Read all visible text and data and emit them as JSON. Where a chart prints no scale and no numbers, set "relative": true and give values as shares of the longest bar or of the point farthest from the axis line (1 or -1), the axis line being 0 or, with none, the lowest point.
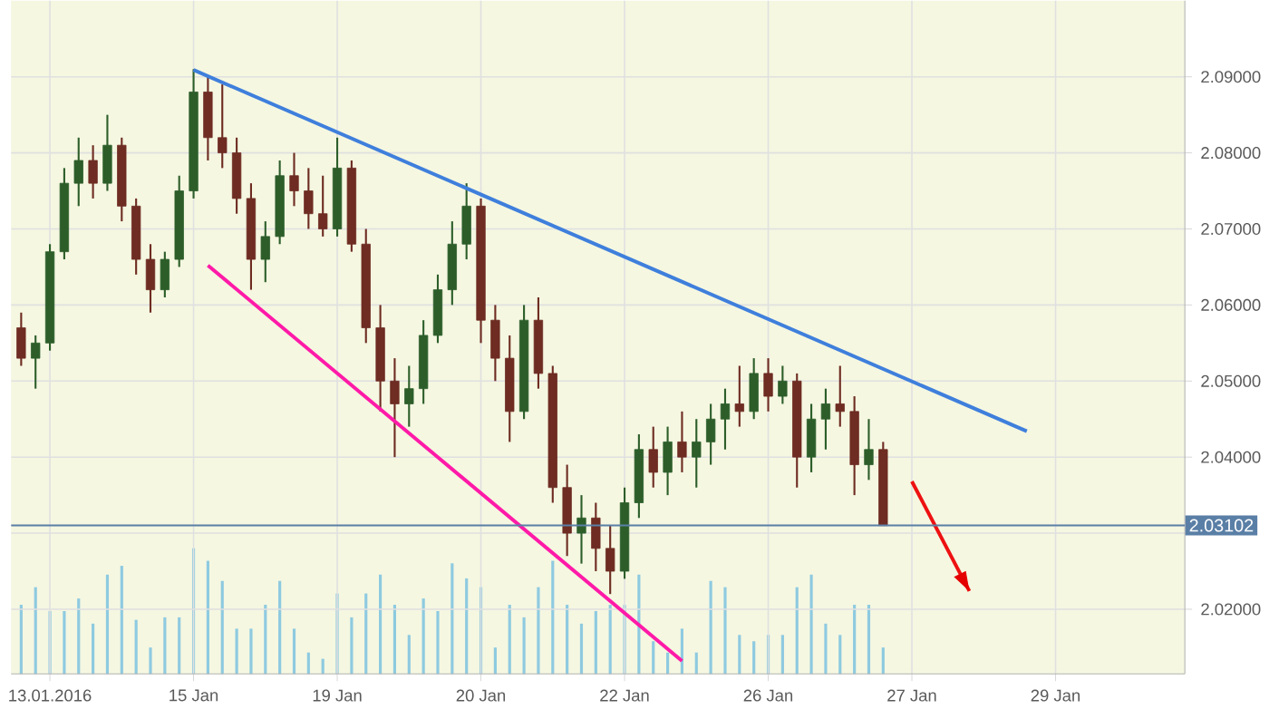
{
  "chart_data": [
    {
      "type": "candlestick",
      "categories": [
        null,
        null,
        "13.01.2016",
        null,
        null,
        null,
        null,
        null,
        null,
        null,
        null,
        null,
        "15 Jan",
        null,
        null,
        null,
        null,
        null,
        null,
        null,
        null,
        null,
        "19 Jan",
        null,
        null,
        null,
        null,
        null,
        null,
        null,
        null,
        null,
        "20 Jan",
        null,
        null,
        null,
        null,
        null,
        null,
        null,
        null,
        null,
        "22 Jan",
        null,
        null,
        null,
        null,
        null,
        null,
        null,
        null,
        null,
        "26 Jan",
        null,
        null,
        null,
        null,
        null,
        null,
        null,
        null,
        null,
        "27 Jan",
        null,
        null,
        null,
        null,
        null,
        null,
        null,
        null,
        null,
        "29 Jan",
        null,
        null,
        null,
        null,
        null,
        null,
        null,
        null,
        null
      ],
      "ohlc": [
        [
          2.057,
          2.059,
          2.052,
          2.053
        ],
        [
          2.053,
          2.056,
          2.049,
          2.055
        ],
        [
          2.055,
          2.068,
          2.054,
          2.067
        ],
        [
          2.067,
          2.078,
          2.066,
          2.076
        ],
        [
          2.076,
          2.082,
          2.073,
          2.079
        ],
        [
          2.079,
          2.081,
          2.074,
          2.076
        ],
        [
          2.076,
          2.085,
          2.075,
          2.081
        ],
        [
          2.081,
          2.082,
          2.071,
          2.073
        ],
        [
          2.073,
          2.074,
          2.064,
          2.066
        ],
        [
          2.066,
          2.068,
          2.059,
          2.062
        ],
        [
          2.062,
          2.067,
          2.061,
          2.066
        ],
        [
          2.066,
          2.077,
          2.065,
          2.075
        ],
        [
          2.075,
          2.091,
          2.074,
          2.088
        ],
        [
          2.088,
          2.09,
          2.079,
          2.082
        ],
        [
          2.082,
          2.089,
          2.078,
          2.08
        ],
        [
          2.08,
          2.082,
          2.072,
          2.074
        ],
        [
          2.074,
          2.076,
          2.062,
          2.066
        ],
        [
          2.066,
          2.071,
          2.063,
          2.069
        ],
        [
          2.069,
          2.079,
          2.068,
          2.077
        ],
        [
          2.077,
          2.08,
          2.073,
          2.075
        ],
        [
          2.075,
          2.078,
          2.07,
          2.072
        ],
        [
          2.072,
          2.077,
          2.069,
          2.07
        ],
        [
          2.07,
          2.082,
          2.069,
          2.078
        ],
        [
          2.078,
          2.079,
          2.067,
          2.068
        ],
        [
          2.068,
          2.07,
          2.055,
          2.057
        ],
        [
          2.057,
          2.06,
          2.046,
          2.05
        ],
        [
          2.05,
          2.053,
          2.04,
          2.047
        ],
        [
          2.047,
          2.052,
          2.044,
          2.049
        ],
        [
          2.049,
          2.058,
          2.047,
          2.056
        ],
        [
          2.056,
          2.064,
          2.055,
          2.062
        ],
        [
          2.062,
          2.071,
          2.06,
          2.068
        ],
        [
          2.068,
          2.076,
          2.066,
          2.073
        ],
        [
          2.073,
          2.074,
          2.055,
          2.058
        ],
        [
          2.058,
          2.06,
          2.05,
          2.053
        ],
        [
          2.053,
          2.056,
          2.042,
          2.046
        ],
        [
          2.046,
          2.06,
          2.045,
          2.058
        ],
        [
          2.058,
          2.061,
          2.049,
          2.051
        ],
        [
          2.051,
          2.052,
          2.034,
          2.036
        ],
        [
          2.036,
          2.039,
          2.027,
          2.03
        ],
        [
          2.03,
          2.035,
          2.026,
          2.032
        ],
        [
          2.032,
          2.034,
          2.025,
          2.028
        ],
        [
          2.028,
          2.031,
          2.022,
          2.025
        ],
        [
          2.025,
          2.036,
          2.024,
          2.034
        ],
        [
          2.034,
          2.043,
          2.032,
          2.041
        ],
        [
          2.041,
          2.044,
          2.036,
          2.038
        ],
        [
          2.038,
          2.044,
          2.035,
          2.042
        ],
        [
          2.042,
          2.046,
          2.038,
          2.04
        ],
        [
          2.04,
          2.045,
          2.036,
          2.042
        ],
        [
          2.042,
          2.047,
          2.039,
          2.045
        ],
        [
          2.045,
          2.049,
          2.041,
          2.047
        ],
        [
          2.047,
          2.052,
          2.044,
          2.046
        ],
        [
          2.046,
          2.053,
          2.045,
          2.051
        ],
        [
          2.051,
          2.053,
          2.046,
          2.048
        ],
        [
          2.048,
          2.052,
          2.047,
          2.05
        ],
        [
          2.05,
          2.051,
          2.036,
          2.04
        ],
        [
          2.04,
          2.047,
          2.038,
          2.045
        ],
        [
          2.045,
          2.049,
          2.041,
          2.047
        ],
        [
          2.047,
          2.052,
          2.044,
          2.046
        ],
        [
          2.046,
          2.048,
          2.035,
          2.039
        ],
        [
          2.039,
          2.045,
          2.037,
          2.041
        ],
        [
          2.041,
          2.042,
          2.031,
          2.031
        ],
        null,
        null,
        null,
        null,
        null,
        null,
        null,
        null,
        null,
        null,
        null,
        null,
        null,
        null,
        null,
        null,
        null,
        null,
        null,
        null,
        null
      ],
      "colors": [
        "#6e2c22",
        "#2d5e2a",
        "#2d5e2a",
        "#2d5e2a",
        "#2d5e2a",
        "#6e2c22",
        "#2d5e2a",
        "#6e2c22",
        "#6e2c22",
        "#6e2c22",
        "#2d5e2a",
        "#2d5e2a",
        "#2d5e2a",
        "#6e2c22",
        "#6e2c22",
        "#6e2c22",
        "#6e2c22",
        "#2d5e2a",
        "#2d5e2a",
        "#6e2c22",
        "#6e2c22",
        "#6e2c22",
        "#2d5e2a",
        "#6e2c22",
        "#6e2c22",
        "#6e2c22",
        "#6e2c22",
        "#2d5e2a",
        "#2d5e2a",
        "#2d5e2a",
        "#2d5e2a",
        "#2d5e2a",
        "#6e2c22",
        "#6e2c22",
        "#6e2c22",
        "#2d5e2a",
        "#6e2c22",
        "#6e2c22",
        "#6e2c22",
        "#2d5e2a",
        "#6e2c22",
        "#6e2c22",
        "#2d5e2a",
        "#2d5e2a",
        "#6e2c22",
        "#2d5e2a",
        "#6e2c22",
        "#2d5e2a",
        "#2d5e2a",
        "#2d5e2a",
        "#6e2c22",
        "#2d5e2a",
        "#6e2c22",
        "#2d5e2a",
        "#6e2c22",
        "#2d5e2a",
        "#2d5e2a",
        "#6e2c22",
        "#6e2c22",
        "#2d5e2a",
        "#6e2c22",
        null,
        null,
        null,
        null,
        null,
        null,
        null,
        null,
        null,
        null,
        null,
        null,
        null,
        null,
        null,
        null,
        null,
        null,
        null,
        null,
        null
      ],
      "series": [
        {
          "type": "line",
          "color": "#3f7fdc",
          "values": [
            null,
            null,
            null,
            null,
            null,
            null,
            null,
            null,
            null,
            null,
            null,
            null,
            2.0909,
            null,
            null,
            null,
            null,
            null,
            null,
            null,
            null,
            null,
            null,
            null,
            null,
            null,
            null,
            null,
            null,
            null,
            null,
            null,
            null,
            null,
            null,
            null,
            null,
            null,
            null,
            null,
            null,
            null,
            null,
            null,
            null,
            null,
            null,
            null,
            null,
            null,
            null,
            null,
            null,
            null,
            null,
            null,
            null,
            null,
            null,
            null,
            null,
            null,
            null,
            null,
            null,
            null,
            null,
            null,
            null,
            null,
            2.0434,
            null,
            null,
            null,
            null,
            null,
            null,
            null,
            null,
            null,
            null,
            null
          ]
        },
        {
          "type": "line",
          "color": "#ff1aa8",
          "values": [
            null,
            null,
            null,
            null,
            null,
            null,
            null,
            null,
            null,
            null,
            null,
            null,
            null,
            2.0652,
            null,
            null,
            null,
            null,
            null,
            null,
            null,
            null,
            null,
            null,
            null,
            null,
            null,
            null,
            null,
            null,
            null,
            null,
            null,
            null,
            null,
            null,
            null,
            null,
            null,
            null,
            null,
            null,
            null,
            null,
            null,
            null,
            2.0132,
            null,
            null,
            null,
            null,
            null,
            null,
            null,
            null,
            null,
            null,
            null,
            null,
            null,
            null,
            null,
            null,
            null,
            null,
            null,
            null,
            null,
            null,
            null,
            null,
            null,
            null,
            null,
            null,
            null,
            null,
            null,
            null,
            null,
            null,
            null
          ]
        },
        {
          "type": "line",
          "color": "#ee1111",
          "values": [
            null,
            null,
            null,
            null,
            null,
            null,
            null,
            null,
            null,
            null,
            null,
            null,
            null,
            null,
            null,
            null,
            null,
            null,
            null,
            null,
            null,
            null,
            null,
            null,
            null,
            null,
            null,
            null,
            null,
            null,
            null,
            null,
            null,
            null,
            null,
            null,
            null,
            null,
            null,
            null,
            null,
            null,
            null,
            null,
            null,
            null,
            null,
            null,
            null,
            null,
            null,
            null,
            null,
            null,
            null,
            null,
            null,
            null,
            null,
            null,
            null,
            null,
            2.0368,
            null,
            null,
            null,
            2.0224,
            null,
            null,
            null,
            null,
            null,
            null,
            null,
            null,
            null,
            null,
            null,
            null,
            null,
            null,
            null
          ]
        }
      ],
      "ylim": [
        2.0115,
        2.1
      ],
      "yticks": [
        {
          "value": 2.02,
          "label": "2.02000"
        },
        {
          "value": 2.03,
          "label": null
        },
        {
          "value": 2.04,
          "label": "2.04000"
        },
        {
          "value": 2.05,
          "label": "2.05000"
        },
        {
          "value": 2.06,
          "label": "2.06000"
        },
        {
          "value": 2.07,
          "label": "2.07000"
        },
        {
          "value": 2.08,
          "label": "2.08000"
        },
        {
          "value": 2.09,
          "label": "2.09000"
        }
      ],
      "ref_lines": [
        {
          "axis": "y",
          "value": 2.03102,
          "label": "2.03102",
          "color": "#5a7fa6"
        }
      ],
      "grid": true
    },
    {
      "type": "bar",
      "relative": true,
      "color": "#8ecae0",
      "categories": [
        null,
        null,
        null,
        null,
        null,
        null,
        null,
        null,
        null,
        null,
        null,
        null,
        null,
        null,
        null,
        null,
        null,
        null,
        null,
        null,
        null,
        null,
        null,
        null,
        null,
        null,
        null,
        null,
        null,
        null,
        null,
        null,
        null,
        null,
        null,
        null,
        null,
        null,
        null,
        null,
        null,
        null,
        null,
        null,
        null,
        null,
        null,
        null,
        null,
        null,
        null,
        null,
        null,
        null,
        null,
        null,
        null,
        null,
        null,
        null,
        null,
        null,
        null,
        null,
        null,
        null,
        null,
        null,
        null,
        null,
        null,
        null,
        null,
        null,
        null,
        null,
        null,
        null,
        null,
        null,
        null,
        null
      ],
      "values": [
        0.55,
        0.69,
        0.5,
        0.5,
        0.6,
        0.4,
        0.79,
        0.86,
        0.43,
        0.21,
        0.45,
        0.45,
        1,
        0.9,
        0.74,
        0.36,
        0.36,
        0.55,
        0.74,
        0.36,
        0.17,
        0.12,
        0.64,
        0.45,
        0.64,
        0.79,
        0.55,
        0.31,
        0.6,
        0.5,
        0.88,
        0.76,
        0.69,
        0.21,
        0.55,
        0.45,
        0.69,
        0.9,
        0.55,
        0.4,
        0.5,
        0.55,
        0.55,
        0.79,
        0.26,
        0.17,
        0.36,
        0.17,
        0.74,
        0.69,
        0.31,
        0.26,
        0.31,
        0.31,
        0.69,
        0.79,
        0.4,
        0.31,
        0.55,
        0.55,
        0.21,
        null,
        null,
        null,
        null,
        null,
        null,
        null,
        null,
        null,
        null,
        null,
        null,
        null,
        null,
        null,
        null,
        null,
        null,
        null,
        null,
        null
      ]
    }
  ]
}
